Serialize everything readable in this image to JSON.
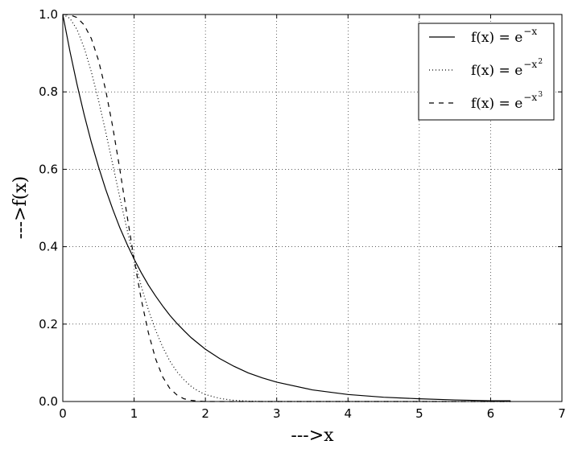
{
  "chart_data": {
    "type": "line",
    "title": "",
    "xlabel": "--->x",
    "ylabel": "--->f(x)",
    "xlim": [
      0,
      7
    ],
    "ylim": [
      0,
      1.0
    ],
    "xticks": [
      "0",
      "1",
      "2",
      "3",
      "4",
      "5",
      "6",
      "7"
    ],
    "yticks": [
      "0.0",
      "0.2",
      "0.4",
      "0.6",
      "0.8",
      "1.0"
    ],
    "grid": true,
    "legend_position": "top-right",
    "x": [
      0,
      0.1,
      0.2,
      0.3,
      0.4,
      0.5,
      0.6,
      0.7,
      0.8,
      0.9,
      1.0,
      1.1,
      1.2,
      1.3,
      1.4,
      1.5,
      1.6,
      1.7,
      1.8,
      1.9,
      2.0,
      2.2,
      2.4,
      2.6,
      2.8,
      3.0,
      3.5,
      4.0,
      4.5,
      5.0,
      5.5,
      6.0,
      6.28
    ],
    "series": [
      {
        "name": "f(x) = e^{-x}",
        "legend": {
          "base": "f(x) = e",
          "exp": "−x",
          "exp_power": ""
        },
        "style": "solid",
        "values": [
          1.0,
          0.905,
          0.819,
          0.741,
          0.67,
          0.607,
          0.549,
          0.497,
          0.449,
          0.407,
          0.368,
          0.333,
          0.301,
          0.273,
          0.247,
          0.223,
          0.202,
          0.183,
          0.165,
          0.15,
          0.135,
          0.111,
          0.091,
          0.074,
          0.061,
          0.05,
          0.03,
          0.018,
          0.011,
          0.007,
          0.004,
          0.002,
          0.002
        ]
      },
      {
        "name": "f(x) = e^{-x^2}",
        "legend": {
          "base": "f(x) = e",
          "exp": "−x",
          "exp_power": "2"
        },
        "style": "dotted",
        "values": [
          1.0,
          0.99,
          0.961,
          0.914,
          0.852,
          0.779,
          0.698,
          0.613,
          0.527,
          0.445,
          0.368,
          0.298,
          0.237,
          0.185,
          0.141,
          0.105,
          0.077,
          0.056,
          0.039,
          0.027,
          0.018,
          0.008,
          0.003,
          0.001,
          0.0,
          0.0,
          0.0,
          0.0,
          0.0,
          0.0,
          0.0,
          0.0,
          0.0
        ]
      },
      {
        "name": "f(x) = e^{-x^3}",
        "legend": {
          "base": "f(x) = e",
          "exp": "−x",
          "exp_power": "3"
        },
        "style": "dashed",
        "values": [
          1.0,
          0.999,
          0.992,
          0.973,
          0.938,
          0.882,
          0.806,
          0.71,
          0.6,
          0.482,
          0.368,
          0.264,
          0.178,
          0.111,
          0.064,
          0.034,
          0.017,
          0.007,
          0.003,
          0.001,
          0.0,
          0.0,
          0.0,
          0.0,
          0.0,
          0.0,
          0.0,
          0.0,
          0.0,
          0.0,
          0.0,
          0.0,
          0.0
        ]
      }
    ]
  }
}
